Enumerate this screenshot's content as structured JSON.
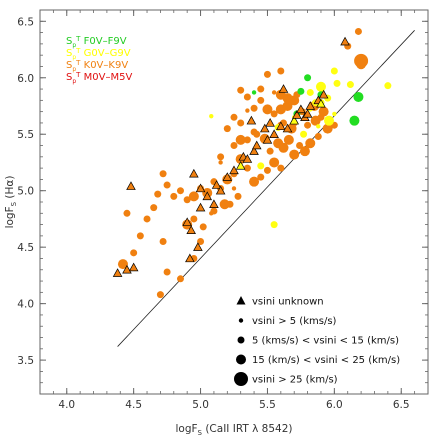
{
  "chart_data": {
    "type": "scatter",
    "xlabel": "logF_S (CaII IRT λ 8542)",
    "ylabel": "logF_S (Hα)",
    "xlabel_parts": {
      "main": "logF",
      "sub": "S",
      "rest": " (CaII IRT λ 8542)"
    },
    "ylabel_parts": {
      "main": "logF",
      "sub": "S",
      "rest": " (Hα)"
    },
    "xlim": [
      3.8,
      6.7
    ],
    "ylim": [
      3.2,
      6.6
    ],
    "xticks": [
      "4.0",
      "4.5",
      "5.0",
      "5.5",
      "6.0",
      "6.5"
    ],
    "yticks": [
      "3.5",
      "4.0",
      "4.5",
      "5.0",
      "5.5",
      "6.0",
      "6.5"
    ],
    "fit_line": {
      "x": [
        4.38,
        6.6
      ],
      "y": [
        3.62,
        6.42
      ]
    },
    "spectral_types": [
      {
        "label": "F0V–F9V",
        "color": "#22cc22"
      },
      {
        "label": "G0V–G9V",
        "color": "#ffff00"
      },
      {
        "label": "K0V–K9V",
        "color": "#f08010"
      },
      {
        "label": "M0V–M5V",
        "color": "#e01010"
      }
    ],
    "colors": {
      "F": "#22dd22",
      "G": "#ffff11",
      "K": "#f08010",
      "M": "#e01010"
    },
    "legend_location": "bottom-right",
    "size_legend": [
      {
        "label": "vsini unknown",
        "marker": "triangle"
      },
      {
        "label": "vsini > 5 (kms/s)",
        "marker": "circle",
        "size": 1
      },
      {
        "label": "5 (kms/s) < vsini < 15 (km/s)",
        "marker": "circle",
        "size": 2
      },
      {
        "label": "15 (km/s) < vsini < 25 (km/s)",
        "marker": "circle",
        "size": 3
      },
      {
        "label": "vsini > 25 (km/s)",
        "marker": "circle",
        "size": 4
      }
    ],
    "series": [
      {
        "name": "G0V–G9V",
        "type": "G",
        "points": [
          [
            6.0,
            6.06,
            2
          ],
          [
            6.02,
            5.95,
            2
          ],
          [
            5.9,
            5.92,
            3
          ],
          [
            5.95,
            5.82,
            2
          ],
          [
            5.82,
            5.87,
            2
          ],
          [
            6.12,
            5.94,
            2
          ],
          [
            6.4,
            5.93,
            2
          ],
          [
            5.96,
            5.62,
            3
          ],
          [
            5.86,
            5.78,
            2
          ],
          [
            5.77,
            5.5,
            2
          ],
          [
            5.58,
            5.56,
            2
          ],
          [
            5.55,
            4.7,
            2
          ],
          [
            5.08,
            5.66,
            1
          ],
          [
            5.82,
            5.72,
            1
          ],
          [
            5.7,
            5.65,
            1
          ],
          [
            5.88,
            5.57,
            1
          ],
          [
            5.45,
            5.22,
            2
          ],
          [
            5.9,
            5.78,
            2
          ],
          [
            6.0,
            5.68,
            1
          ]
        ]
      },
      {
        "name": "F0V–F9V",
        "type": "F",
        "points": [
          [
            6.18,
            5.83,
            3
          ],
          [
            6.15,
            5.62,
            3
          ],
          [
            5.8,
            6.0,
            2
          ],
          [
            5.9,
            5.85,
            2
          ],
          [
            5.75,
            5.88,
            2
          ],
          [
            5.4,
            5.87,
            1
          ],
          [
            5.72,
            5.68,
            2
          ]
        ]
      },
      {
        "name": "K0V–K9V",
        "type": "K",
        "points": [
          [
            6.18,
            6.41,
            2
          ],
          [
            6.2,
            6.15,
            4
          ],
          [
            6.2,
            6.12,
            3
          ],
          [
            6.1,
            6.28,
            2
          ],
          [
            5.6,
            6.06,
            2
          ],
          [
            5.5,
            6.03,
            2
          ],
          [
            5.3,
            5.89,
            2
          ],
          [
            5.35,
            5.83,
            2
          ],
          [
            5.45,
            5.9,
            2
          ],
          [
            5.55,
            5.87,
            1
          ],
          [
            5.6,
            5.85,
            3
          ],
          [
            5.65,
            5.82,
            3
          ],
          [
            5.7,
            5.8,
            3
          ],
          [
            5.72,
            5.85,
            2
          ],
          [
            5.85,
            5.75,
            3
          ],
          [
            5.92,
            5.7,
            3
          ],
          [
            5.65,
            5.75,
            3
          ],
          [
            5.6,
            5.72,
            3
          ],
          [
            5.55,
            5.68,
            2
          ],
          [
            5.5,
            5.72,
            3
          ],
          [
            5.45,
            5.8,
            2
          ],
          [
            5.4,
            5.73,
            2
          ],
          [
            5.35,
            5.71,
            1
          ],
          [
            5.3,
            5.6,
            2
          ],
          [
            5.25,
            5.65,
            2
          ],
          [
            5.2,
            5.55,
            2
          ],
          [
            5.35,
            5.45,
            2
          ],
          [
            5.42,
            5.5,
            2
          ],
          [
            5.48,
            5.46,
            3
          ],
          [
            5.52,
            5.35,
            2
          ],
          [
            5.58,
            5.42,
            3
          ],
          [
            5.62,
            5.38,
            3
          ],
          [
            5.66,
            5.45,
            3
          ],
          [
            5.7,
            5.32,
            3
          ],
          [
            5.74,
            5.4,
            2
          ],
          [
            5.78,
            5.35,
            3
          ],
          [
            5.82,
            5.42,
            3
          ],
          [
            5.88,
            5.48,
            2
          ],
          [
            5.95,
            5.55,
            3
          ],
          [
            6.0,
            5.58,
            2
          ],
          [
            5.68,
            5.55,
            3
          ],
          [
            5.6,
            5.58,
            2
          ],
          [
            5.55,
            5.25,
            3
          ],
          [
            5.6,
            5.2,
            2
          ],
          [
            5.5,
            5.18,
            2
          ],
          [
            5.45,
            5.12,
            2
          ],
          [
            5.4,
            5.08,
            3
          ],
          [
            5.35,
            5.2,
            2
          ],
          [
            5.3,
            5.28,
            3
          ],
          [
            5.25,
            5.15,
            2
          ],
          [
            5.2,
            5.1,
            3
          ],
          [
            5.15,
            5.02,
            2
          ],
          [
            5.1,
            5.08,
            2
          ],
          [
            5.05,
            4.98,
            3
          ],
          [
            5.0,
            5.02,
            2
          ],
          [
            4.95,
            4.95,
            3
          ],
          [
            4.9,
            4.92,
            2
          ],
          [
            4.85,
            5.0,
            2
          ],
          [
            4.8,
            4.95,
            2
          ],
          [
            4.75,
            5.05,
            2
          ],
          [
            4.72,
            5.15,
            2
          ],
          [
            4.68,
            4.97,
            2
          ],
          [
            4.65,
            4.85,
            2
          ],
          [
            5.15,
            5.3,
            2
          ],
          [
            5.18,
            4.88,
            3
          ],
          [
            4.6,
            4.75,
            2
          ],
          [
            4.55,
            4.6,
            2
          ],
          [
            4.5,
            4.45,
            2
          ],
          [
            4.45,
            4.8,
            2
          ],
          [
            4.42,
            4.35,
            3
          ],
          [
            4.75,
            4.28,
            2
          ],
          [
            4.85,
            4.22,
            2
          ],
          [
            4.7,
            4.08,
            2
          ],
          [
            4.72,
            4.55,
            2
          ],
          [
            4.9,
            4.7,
            3
          ],
          [
            4.95,
            4.75,
            2
          ],
          [
            5.02,
            4.68,
            2
          ],
          [
            5.1,
            4.82,
            2
          ],
          [
            5.22,
            4.88,
            2
          ],
          [
            5.28,
            4.95,
            2
          ],
          [
            5.0,
            4.55,
            2
          ],
          [
            4.95,
            4.4,
            2
          ],
          [
            5.25,
            5.4,
            2
          ],
          [
            5.3,
            5.45,
            3
          ],
          [
            5.4,
            5.52,
            2
          ],
          [
            5.15,
            5.25,
            1
          ],
          [
            5.62,
            5.6,
            2
          ],
          [
            5.7,
            5.6,
            2
          ],
          [
            5.8,
            5.58,
            2
          ],
          [
            5.86,
            5.62,
            3
          ],
          [
            5.9,
            5.65,
            2
          ],
          [
            5.76,
            5.7,
            2
          ],
          [
            5.25,
            5.02,
            1
          ],
          [
            5.08,
            4.8,
            1
          ]
        ]
      },
      {
        "name": "vsini unknown",
        "type": "triangle",
        "points": [
          [
            4.38,
            4.27,
            "K"
          ],
          [
            4.45,
            4.3,
            "K"
          ],
          [
            4.5,
            4.32,
            "K"
          ],
          [
            4.48,
            5.04,
            "K"
          ],
          [
            4.92,
            4.4,
            "K"
          ],
          [
            4.93,
            4.65,
            "K"
          ],
          [
            4.98,
            4.5,
            "K"
          ],
          [
            4.9,
            4.72,
            "K"
          ],
          [
            5.0,
            4.85,
            "K"
          ],
          [
            5.05,
            4.95,
            "K"
          ],
          [
            5.1,
            4.88,
            "K"
          ],
          [
            5.12,
            5.05,
            "K"
          ],
          [
            5.15,
            5.0,
            "K"
          ],
          [
            5.2,
            5.12,
            "K"
          ],
          [
            5.25,
            5.18,
            "K"
          ],
          [
            5.3,
            5.22,
            "G"
          ],
          [
            5.32,
            5.3,
            "K"
          ],
          [
            5.35,
            5.28,
            "K"
          ],
          [
            5.4,
            5.35,
            "K"
          ],
          [
            5.42,
            5.4,
            "K"
          ],
          [
            5.48,
            5.55,
            "K"
          ],
          [
            5.5,
            5.45,
            "K"
          ],
          [
            5.52,
            5.6,
            "K"
          ],
          [
            5.55,
            5.5,
            "K"
          ],
          [
            5.6,
            5.57,
            "K"
          ],
          [
            5.65,
            5.55,
            "K"
          ],
          [
            5.7,
            5.62,
            "G"
          ],
          [
            5.72,
            5.67,
            "K"
          ],
          [
            5.75,
            5.72,
            "K"
          ],
          [
            5.78,
            5.65,
            "K"
          ],
          [
            5.8,
            5.68,
            "K"
          ],
          [
            5.82,
            5.75,
            "K"
          ],
          [
            5.88,
            5.8,
            "K"
          ],
          [
            5.9,
            5.77,
            "G"
          ],
          [
            5.92,
            5.85,
            "K"
          ],
          [
            6.08,
            6.32,
            "K"
          ],
          [
            5.62,
            5.9,
            "K"
          ],
          [
            5.0,
            5.02,
            "K"
          ],
          [
            4.95,
            5.15,
            "K"
          ],
          [
            5.38,
            5.62,
            "K"
          ]
        ]
      }
    ]
  }
}
